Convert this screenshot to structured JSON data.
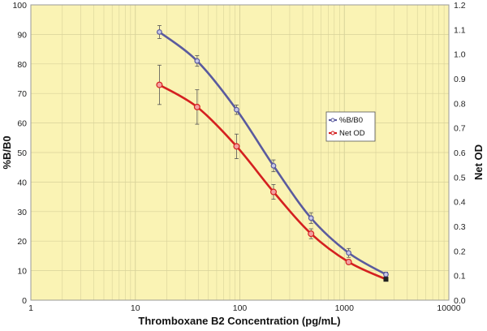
{
  "chart_data": {
    "type": "line",
    "title": "",
    "xlabel": "Thromboxane B2 Concentration (pg/mL)",
    "ylabel": "%B/B0",
    "y2label": "Net OD",
    "xscale": "log",
    "xlim": [
      1,
      10000
    ],
    "ylim": [
      0,
      100
    ],
    "y2lim": [
      0,
      1.2
    ],
    "x_ticks": [
      "1",
      "10",
      "100",
      "1000",
      "10000"
    ],
    "y_ticks": [
      "0",
      "10",
      "20",
      "30",
      "40",
      "50",
      "60",
      "70",
      "80",
      "90",
      "100"
    ],
    "y2_ticks": [
      "0.0",
      "0.1",
      "0.2",
      "0.3",
      "0.4",
      "0.5",
      "0.6",
      "0.7",
      "0.8",
      "0.9",
      "1.0",
      "1.1",
      "1.2"
    ],
    "grid": true,
    "legend_position": "right-center",
    "colors": {
      "plot_bg": "#faf3b4",
      "grid": "#d8d29a",
      "frame": "#999999",
      "page_bg": "#ffffff"
    },
    "series": [
      {
        "name": "%B/B0",
        "axis": "left",
        "color": "#5a5a9e",
        "x": [
          17,
          39,
          93,
          210,
          480,
          1100,
          2500
        ],
        "values": [
          90.8,
          81.0,
          64.5,
          45.5,
          27.8,
          16.0,
          8.7
        ],
        "errors": [
          2.2,
          1.8,
          1.6,
          2.0,
          1.8,
          1.5,
          0.8
        ]
      },
      {
        "name": "Net OD",
        "axis": "right",
        "color": "#d42020",
        "x": [
          17,
          39,
          93,
          210,
          480,
          1100,
          2500
        ],
        "values": [
          0.875,
          0.785,
          0.625,
          0.44,
          0.27,
          0.155,
          0.085
        ],
        "errors": [
          0.08,
          0.07,
          0.05,
          0.03,
          0.02,
          0.01,
          0.005
        ]
      }
    ]
  }
}
